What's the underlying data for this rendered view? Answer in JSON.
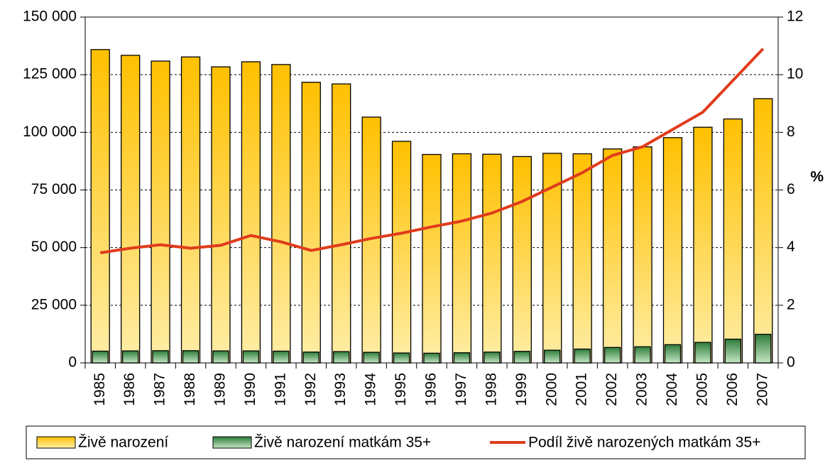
{
  "chart_data": {
    "type": "bar",
    "categories": [
      "1985",
      "1986",
      "1987",
      "1988",
      "1989",
      "1990",
      "1991",
      "1992",
      "1993",
      "1994",
      "1995",
      "1996",
      "1997",
      "1998",
      "1999",
      "2000",
      "2001",
      "2002",
      "2003",
      "2004",
      "2005",
      "2006",
      "2007"
    ],
    "series": [
      {
        "name": "Živě narození",
        "color": "#ffc000",
        "values": [
          135900,
          133400,
          130900,
          132700,
          128400,
          130600,
          129400,
          121700,
          121000,
          106600,
          96100,
          90400,
          90700,
          90500,
          89500,
          90900,
          90700,
          92800,
          93700,
          97700,
          102200,
          105800,
          114600
        ]
      },
      {
        "name": "Živě narození matkám 35+",
        "color": "#3c8c46",
        "values": [
          5100,
          5200,
          5300,
          5300,
          5200,
          5200,
          5100,
          4700,
          4900,
          4600,
          4300,
          4200,
          4400,
          4700,
          5000,
          5500,
          6000,
          6700,
          7000,
          7900,
          8900,
          10300,
          12400
        ]
      },
      {
        "name": "Podíl živě narozených matkám 35+",
        "color": "#e03c1c",
        "type": "line",
        "axis": "y2",
        "values": [
          3.82,
          3.98,
          4.1,
          3.98,
          4.08,
          4.42,
          4.2,
          3.9,
          4.1,
          4.32,
          4.5,
          4.72,
          4.92,
          5.2,
          5.6,
          6.1,
          6.6,
          7.2,
          7.5,
          8.1,
          8.7,
          9.8,
          10.9
        ]
      }
    ],
    "y2_label": "%",
    "ylim": [
      0,
      150000
    ],
    "yticks": [
      0,
      {
        "value": 25000,
        "label": "25 000"
      },
      {
        "value": 50000,
        "label": "50 000"
      },
      {
        "value": 75000,
        "label": "75 000"
      },
      {
        "value": 100000,
        "label": "100 000"
      },
      {
        "value": 125000,
        "label": "125 000"
      },
      {
        "value": 150000,
        "label": "150 000"
      }
    ],
    "y2lim": [
      0,
      12
    ],
    "y2ticks": [
      0,
      2,
      4,
      6,
      8,
      10,
      12
    ],
    "grid": true
  }
}
